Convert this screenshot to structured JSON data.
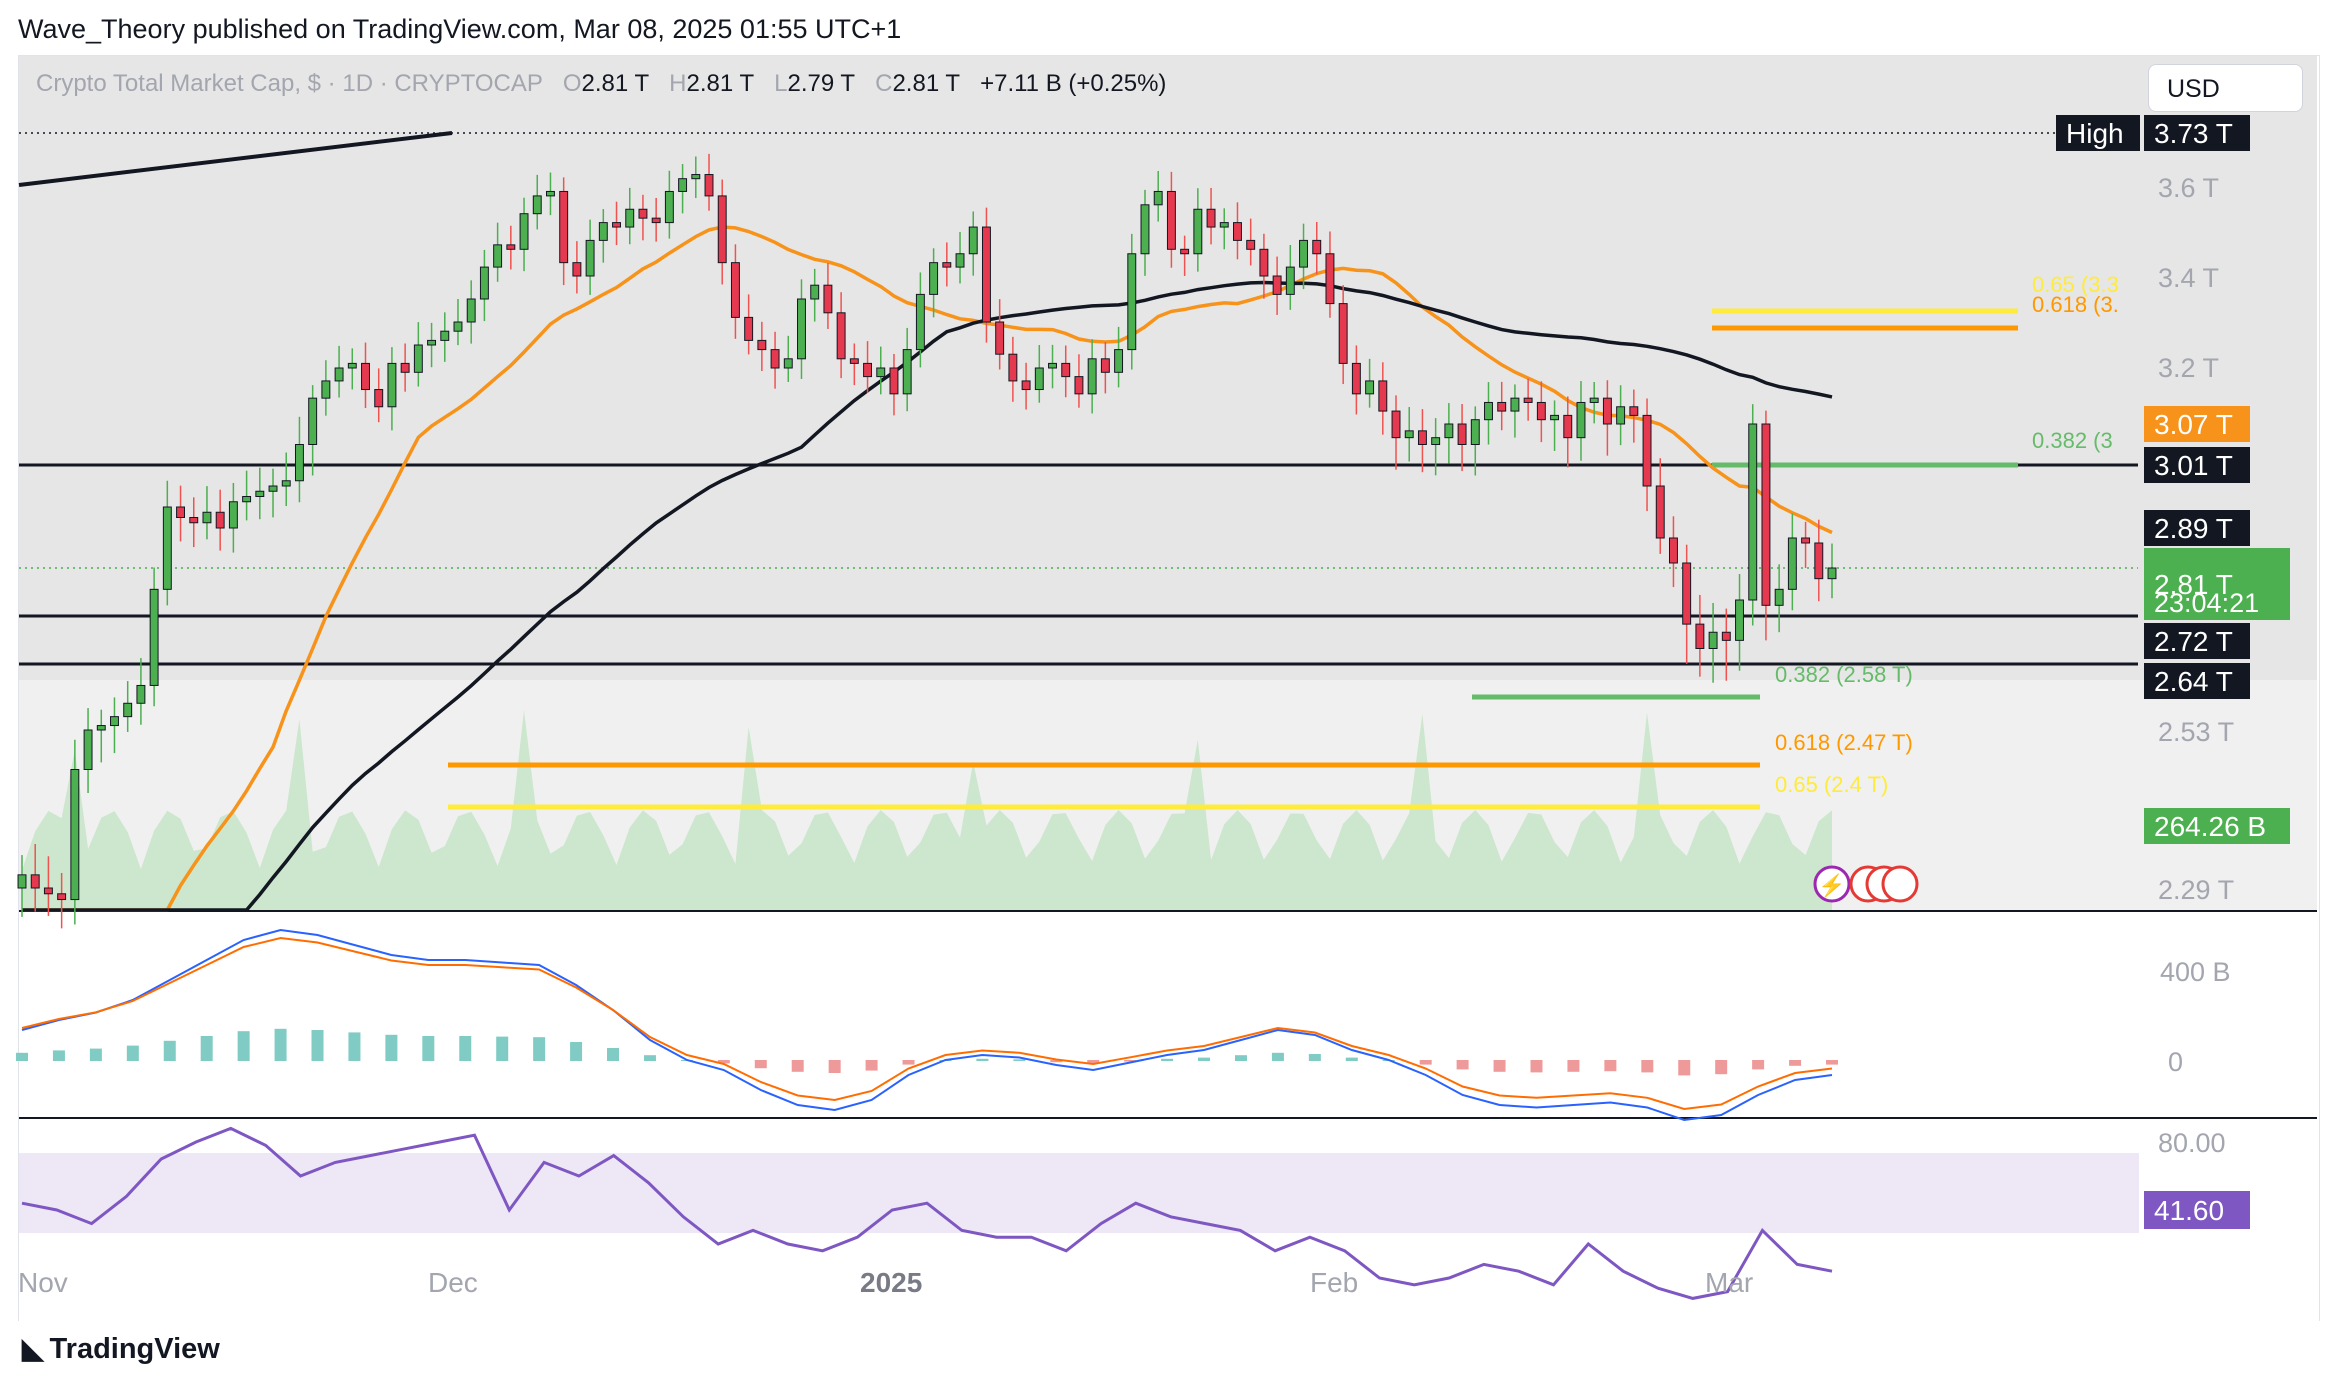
{
  "header": {
    "author": "Wave_Theory",
    "published_text": "published on TradingView.com, Mar 08, 2025 01:55 UTC+1"
  },
  "legend": {
    "symbol": "Crypto Total Market Cap, $ · 1D · CRYPTOCAP",
    "o_label": "O",
    "o": "2.81 T",
    "h_label": "H",
    "h": "2.81 T",
    "l_label": "L",
    "l": "2.79 T",
    "c_label": "C",
    "c": "2.81 T",
    "change": "+7.11 B (+0.25%)"
  },
  "currency_button": "USD",
  "footer": {
    "brand": "TradingView"
  },
  "colors": {
    "up": "#26a69a",
    "up_body": "#4caf50",
    "down": "#ef5350",
    "down_body": "#e53950",
    "ma50": "#f7931a",
    "ma200": "#131722",
    "fib_618": "#ff9800",
    "fib_65": "#ffeb3b",
    "fib_382": "#66bb6a",
    "rsi": "#7e57c2",
    "macd": "#2962ff",
    "signal": "#ff6d00"
  },
  "chart_data": [
    {
      "type": "candlestick",
      "title": "Crypto Total Market Cap, $ · 1D · CRYPTOCAP",
      "y_unit": "T",
      "ylim": [
        2.25,
        3.8
      ],
      "y_ticks": [
        "3.6 T",
        "3.4 T",
        "3.2 T",
        "2.53 T",
        "2.29 T"
      ],
      "x_ticks": [
        "Nov",
        "Dec",
        "2025",
        "Feb",
        "Mar"
      ],
      "price_labels": [
        {
          "text": "High",
          "value": "3.73 T",
          "kind": "high"
        },
        {
          "text": "",
          "value": "3.07 T",
          "kind": "ma50"
        },
        {
          "text": "",
          "value": "3.01 T",
          "kind": "level"
        },
        {
          "text": "",
          "value": "2.89 T",
          "kind": "ma200"
        },
        {
          "text": "",
          "value": "2.81 T",
          "kind": "last",
          "countdown": "23:04:21"
        },
        {
          "text": "",
          "value": "2.72 T",
          "kind": "level"
        },
        {
          "text": "",
          "value": "2.64 T",
          "kind": "level"
        }
      ],
      "fib_labels": [
        {
          "text": "0.65 (3.3",
          "level": 3.31
        },
        {
          "text": "0.618 (3.",
          "level": 3.28
        },
        {
          "text": "0.382 (3",
          "level": 3.01
        },
        {
          "text": "0.382 (2.58 T)",
          "level": 2.58
        },
        {
          "text": "0.618 (2.47 T)",
          "level": 2.47
        },
        {
          "text": "0.65 (2.4 T)",
          "level": 2.4
        }
      ],
      "horizontal_levels": [
        3.73,
        3.01,
        2.72,
        2.64
      ],
      "closes": [
        2.31,
        2.29,
        2.28,
        2.27,
        2.47,
        2.53,
        2.54,
        2.56,
        2.59,
        2.63,
        2.77,
        2.93,
        2.91,
        2.9,
        2.92,
        2.89,
        2.94,
        2.95,
        2.96,
        2.97,
        2.98,
        3.04,
        3.13,
        3.17,
        3.2,
        3.21,
        3.15,
        3.11,
        3.21,
        3.19,
        3.25,
        3.26,
        3.28,
        3.3,
        3.35,
        3.42,
        3.47,
        3.46,
        3.54,
        3.58,
        3.59,
        3.43,
        3.4,
        3.48,
        3.52,
        3.51,
        3.55,
        3.53,
        3.52,
        3.59,
        3.62,
        3.63,
        3.58,
        3.43,
        3.31,
        3.26,
        3.24,
        3.2,
        3.22,
        3.35,
        3.38,
        3.32,
        3.22,
        3.21,
        3.18,
        3.2,
        3.14,
        3.24,
        3.36,
        3.43,
        3.42,
        3.45,
        3.51,
        3.3,
        3.23,
        3.17,
        3.15,
        3.2,
        3.21,
        3.18,
        3.14,
        3.22,
        3.19,
        3.24,
        3.45,
        3.56,
        3.59,
        3.46,
        3.45,
        3.55,
        3.51,
        3.52,
        3.48,
        3.46,
        3.4,
        3.36,
        3.42,
        3.48,
        3.45,
        3.34,
        3.21,
        3.14,
        3.17,
        3.1,
        3.05,
        3.06,
        3.04,
        3.05,
        3.07,
        3.04,
        3.08,
        3.12,
        3.1,
        3.13,
        3.12,
        3.08,
        3.09,
        3.05,
        3.12,
        3.13,
        3.07,
        3.11,
        3.09,
        2.97,
        2.87,
        2.82,
        2.71,
        2.68,
        2.7,
        2.69,
        2.75,
        3.07,
        2.74,
        2.77,
        2.87,
        2.86,
        2.79,
        2.81
      ],
      "volume_label": "264.26 B"
    },
    {
      "type": "line",
      "title": "MACD",
      "y_ticks": [
        "400 B",
        "0"
      ],
      "series": [
        {
          "values": [
            60,
            80,
            95,
            120,
            160,
            200,
            240,
            260,
            250,
            230,
            210,
            200,
            200,
            195,
            190,
            150,
            100,
            40,
            0,
            -20,
            -60,
            -90,
            -100,
            -80,
            -30,
            0,
            10,
            5,
            -10,
            -20,
            -5,
            10,
            20,
            40,
            60,
            50,
            20,
            0,
            -30,
            -70,
            -90,
            -95,
            -90,
            -85,
            -95,
            -120,
            -110,
            -70,
            -40,
            -30
          ]
        }
      ]
    },
    {
      "type": "line",
      "title": "RSI",
      "y_ticks": [
        "80.00"
      ],
      "series": [
        {
          "values": [
            62,
            60,
            56,
            64,
            75,
            80,
            84,
            79,
            70,
            74,
            76,
            78,
            80,
            82,
            60,
            74,
            70,
            76,
            68,
            58,
            50,
            54,
            50,
            48,
            52,
            60,
            62,
            54,
            52,
            52,
            48,
            56,
            62,
            58,
            56,
            54,
            48,
            52,
            48,
            40,
            38,
            40,
            44,
            42,
            38,
            50,
            42,
            37,
            34,
            36,
            54,
            44,
            42
          ]
        }
      ],
      "last_value": "41.60"
    }
  ]
}
